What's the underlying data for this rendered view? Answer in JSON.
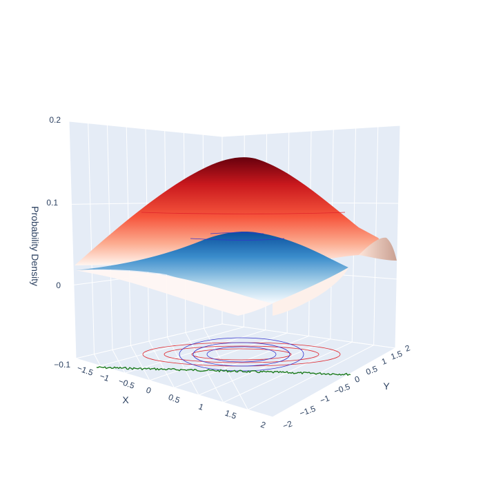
{
  "chart_data": {
    "type": "surface3d",
    "title": "",
    "axes": {
      "x": {
        "label": "X",
        "range": [
          -2,
          2
        ],
        "ticks": [
          "−1.5",
          "−1",
          "−0.5",
          "0",
          "0.5",
          "1",
          "1.5",
          "2"
        ]
      },
      "y": {
        "label": "Y",
        "range": [
          -2,
          2
        ],
        "ticks": [
          "−2",
          "−1.5",
          "−1",
          "−0.5",
          "0",
          "0.5",
          "1",
          "1.5",
          "2"
        ]
      },
      "z": {
        "label": "Probability Density",
        "range": [
          -0.1,
          0.2
        ],
        "ticks": [
          "0.2",
          "0.1",
          "0",
          "−0.1"
        ]
      }
    },
    "grid": true,
    "surfaces": [
      {
        "colorscale": "Reds",
        "peak_density": 0.155,
        "center": [
          0,
          0
        ],
        "sigma": [
          1.0,
          1.0
        ],
        "contour_on_floor_color": "#e0242a"
      },
      {
        "colorscale": "Blues",
        "peak_density": 0.06,
        "center": [
          0,
          0
        ],
        "sigma": [
          1.2,
          1.2
        ],
        "contour_on_floor_color": "#3333cc"
      }
    ],
    "sample_trace": {
      "type": "scatter3d",
      "color": "#1a7a1a",
      "note_visible": false
    }
  }
}
